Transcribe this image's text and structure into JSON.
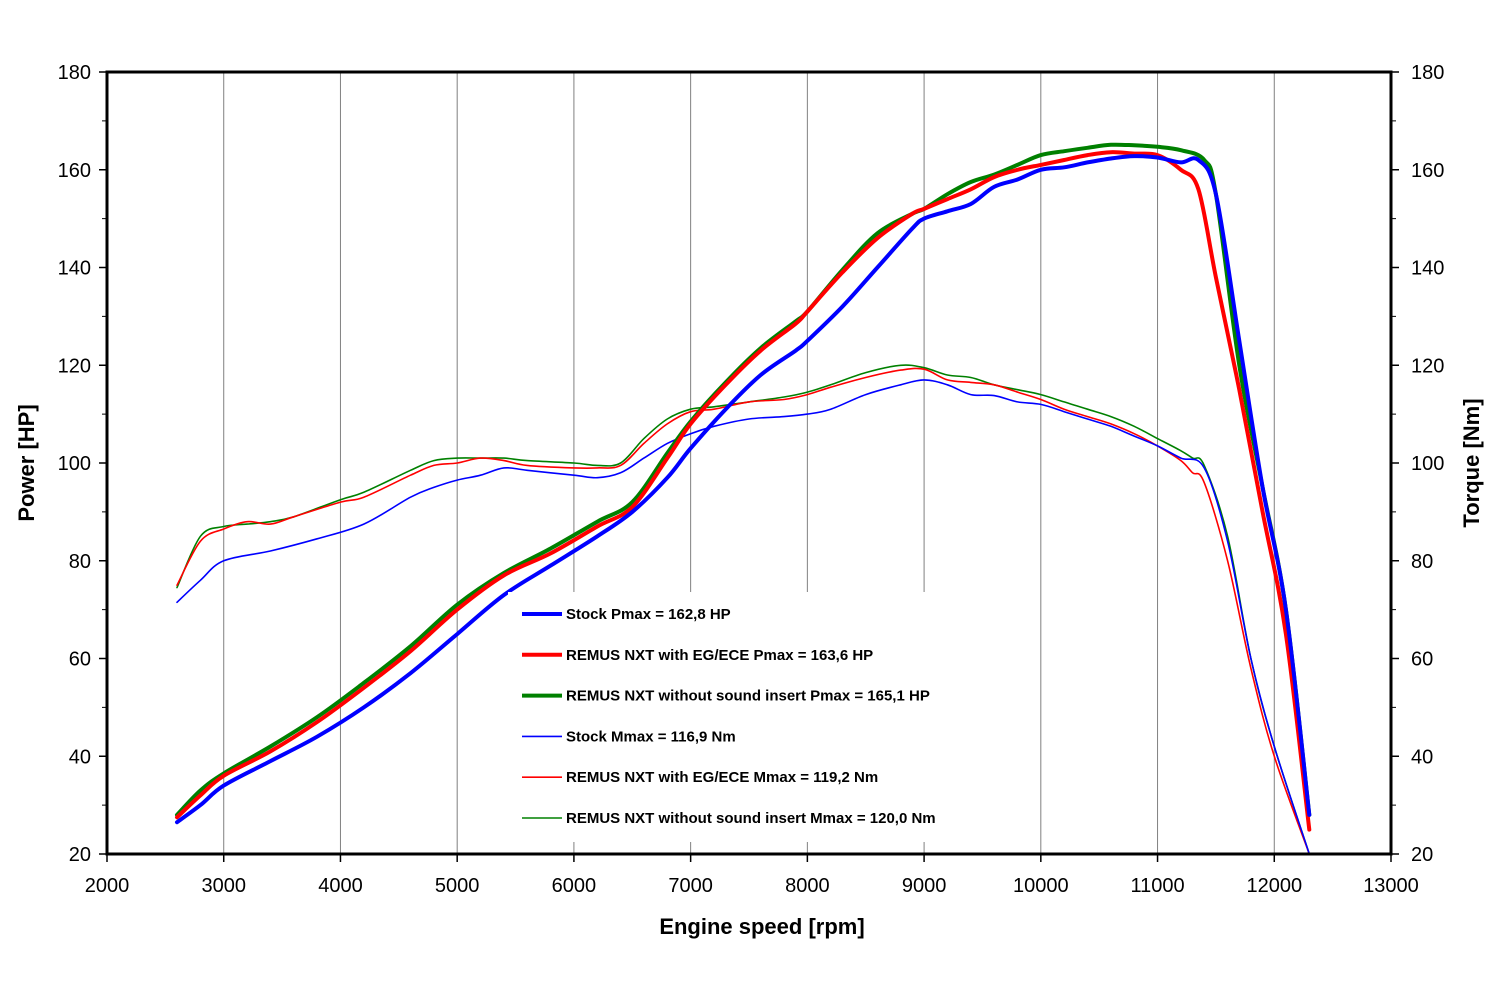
{
  "chart_data": {
    "type": "line",
    "xlabel": "Engine speed [rpm]",
    "ylabel": "Power [HP]",
    "y2label": "Torque [Nm]",
    "xlim": [
      2000,
      13000
    ],
    "ylim": [
      20,
      180
    ],
    "y2lim": [
      20,
      180
    ],
    "x_ticks": [
      "2000",
      "3000",
      "4000",
      "5000",
      "6000",
      "7000",
      "8000",
      "9000",
      "10000",
      "11000",
      "12000",
      "13000"
    ],
    "y_ticks": [
      "20",
      "40",
      "60",
      "80",
      "100",
      "120",
      "140",
      "160",
      "180"
    ],
    "y2_ticks": [
      "20",
      "40",
      "60",
      "80",
      "100",
      "120",
      "140",
      "160",
      "180"
    ],
    "grid": "vertical",
    "legend_position": "center-bottom",
    "series": [
      {
        "name": "Stock Pmax = 162,8 HP",
        "color": "#0000ff",
        "weight": "thick",
        "axis": "power",
        "x": [
          2600,
          2800,
          3000,
          3400,
          3800,
          4200,
          4600,
          5000,
          5400,
          5800,
          6200,
          6500,
          6800,
          7000,
          7300,
          7600,
          7900,
          8000,
          8300,
          8600,
          8900,
          9000,
          9200,
          9400,
          9600,
          9800,
          10000,
          10200,
          10400,
          10600,
          10800,
          11000,
          11200,
          11350,
          11500,
          11700,
          11900,
          12100,
          12300
        ],
        "y": [
          26.5,
          30,
          34,
          39,
          44,
          50,
          57,
          65,
          73,
          79,
          85,
          90,
          97,
          103,
          111,
          118,
          123,
          125,
          132,
          140,
          148,
          150,
          151.5,
          153,
          156.5,
          158,
          160,
          160.5,
          161.5,
          162.3,
          162.8,
          162.5,
          161.5,
          162,
          155,
          125,
          95,
          70,
          28
        ]
      },
      {
        "name": "REMUS NXT with EG/ECE Pmax = 163,6 HP",
        "color": "#ff0000",
        "weight": "thick",
        "axis": "power",
        "x": [
          2600,
          2800,
          3000,
          3400,
          3800,
          4200,
          4600,
          5000,
          5400,
          5800,
          6200,
          6500,
          6800,
          7000,
          7300,
          7600,
          7900,
          8000,
          8300,
          8600,
          8900,
          9000,
          9200,
          9400,
          9600,
          9800,
          10000,
          10200,
          10400,
          10600,
          10800,
          11000,
          11200,
          11350,
          11500,
          11700,
          11900,
          12100,
          12300
        ],
        "y": [
          27.5,
          32,
          36,
          41,
          47,
          54,
          61.5,
          70,
          77,
          81.5,
          87,
          91,
          101,
          108,
          116,
          123,
          128.5,
          131,
          139,
          146,
          151,
          152,
          154,
          156,
          158.5,
          160,
          161,
          162,
          163,
          163.6,
          163.3,
          163,
          160,
          156,
          138,
          115,
          90,
          65,
          25
        ]
      },
      {
        "name": "REMUS NXT without sound insert Pmax = 165,1 HP",
        "color": "#008000",
        "weight": "thick",
        "axis": "power",
        "x": [
          2600,
          2800,
          3000,
          3400,
          3800,
          4200,
          4600,
          5000,
          5400,
          5800,
          6200,
          6500,
          6800,
          7000,
          7300,
          7600,
          7900,
          8000,
          8300,
          8600,
          8900,
          9000,
          9200,
          9400,
          9600,
          9800,
          10000,
          10200,
          10400,
          10600,
          10800,
          11000,
          11200,
          11400,
          11500,
          11700,
          11900,
          12100,
          12300
        ],
        "y": [
          28,
          33,
          36.5,
          42,
          48,
          55,
          62.5,
          71,
          77.5,
          82.5,
          88,
          92,
          102,
          108.5,
          116.5,
          123.5,
          129,
          131,
          139.5,
          147,
          151,
          152,
          155,
          157.5,
          159,
          161,
          163,
          163.8,
          164.5,
          165.1,
          165,
          164.7,
          164,
          162,
          155,
          120,
          95,
          70,
          28
        ]
      },
      {
        "name": "Stock Mmax = 116,9 Nm",
        "color": "#0000ff",
        "weight": "thin",
        "axis": "torque",
        "x": [
          2600,
          2800,
          3000,
          3400,
          3800,
          4200,
          4600,
          4800,
          5000,
          5200,
          5400,
          5600,
          6000,
          6200,
          6400,
          6600,
          6800,
          7000,
          7200,
          7500,
          7800,
          8000,
          8200,
          8500,
          8800,
          9000,
          9200,
          9400,
          9600,
          9800,
          10000,
          10200,
          10400,
          10600,
          10800,
          11000,
          11200,
          11400,
          11600,
          11800,
          12000,
          12300
        ],
        "y": [
          71.5,
          76,
          80,
          82,
          84.5,
          87.5,
          93,
          95,
          96.5,
          97.5,
          99,
          98.5,
          97.5,
          97,
          98,
          101,
          104,
          106,
          107.5,
          109,
          109.5,
          110,
          111,
          114,
          116,
          117,
          116,
          114,
          113.8,
          112.5,
          112,
          110.5,
          109,
          107.5,
          105.5,
          103.5,
          101,
          99,
          84,
          60,
          42,
          20
        ]
      },
      {
        "name": "REMUS NXT with  EG/ECE Mmax = 119,2 Nm",
        "color": "#ff0000",
        "weight": "thin",
        "axis": "torque",
        "x": [
          2600,
          2800,
          3000,
          3200,
          3400,
          3600,
          4000,
          4200,
          4600,
          4800,
          5000,
          5200,
          5400,
          5600,
          6000,
          6200,
          6400,
          6600,
          6800,
          7000,
          7200,
          7500,
          7800,
          8000,
          8200,
          8500,
          8800,
          9000,
          9200,
          9400,
          9600,
          9800,
          10000,
          10200,
          10400,
          10600,
          10800,
          11000,
          11200,
          11300,
          11400,
          11600,
          11800,
          12000,
          12300
        ],
        "y": [
          75,
          84,
          86.5,
          88,
          87.5,
          89,
          92,
          93,
          97.5,
          99.5,
          100,
          101,
          100.5,
          99.5,
          99,
          99,
          99.5,
          104,
          108,
          110.5,
          111,
          112.5,
          113,
          114,
          115.5,
          117.5,
          119,
          119.2,
          117,
          116.5,
          116,
          114.5,
          113,
          111,
          109.5,
          108,
          106,
          103.5,
          100.5,
          98,
          96,
          80,
          58,
          40,
          20
        ]
      },
      {
        "name": "REMUS NXT without sound insert Mmax = 120,0 Nm",
        "color": "#008000",
        "weight": "thin",
        "axis": "torque",
        "x": [
          2600,
          2800,
          3000,
          3200,
          3400,
          3600,
          4000,
          4200,
          4600,
          4800,
          5000,
          5200,
          5400,
          5600,
          6000,
          6200,
          6400,
          6600,
          6800,
          7000,
          7200,
          7500,
          7800,
          8000,
          8200,
          8500,
          8800,
          9000,
          9200,
          9400,
          9600,
          9800,
          10000,
          10200,
          10400,
          10600,
          10800,
          11000,
          11200,
          11300,
          11400,
          11600,
          11800,
          12000,
          12300
        ],
        "y": [
          74.5,
          85,
          87,
          87.5,
          88,
          89,
          92.5,
          94,
          98.5,
          100.5,
          101,
          101,
          101,
          100.5,
          100,
          99.5,
          100,
          105,
          109,
          111,
          111.5,
          112.5,
          113.5,
          114.5,
          116,
          118.5,
          120,
          119.5,
          118,
          117.5,
          116,
          115,
          114,
          112.5,
          111,
          109.5,
          107.5,
          105,
          102.5,
          101,
          99.5,
          85,
          60,
          42,
          20
        ]
      }
    ]
  }
}
